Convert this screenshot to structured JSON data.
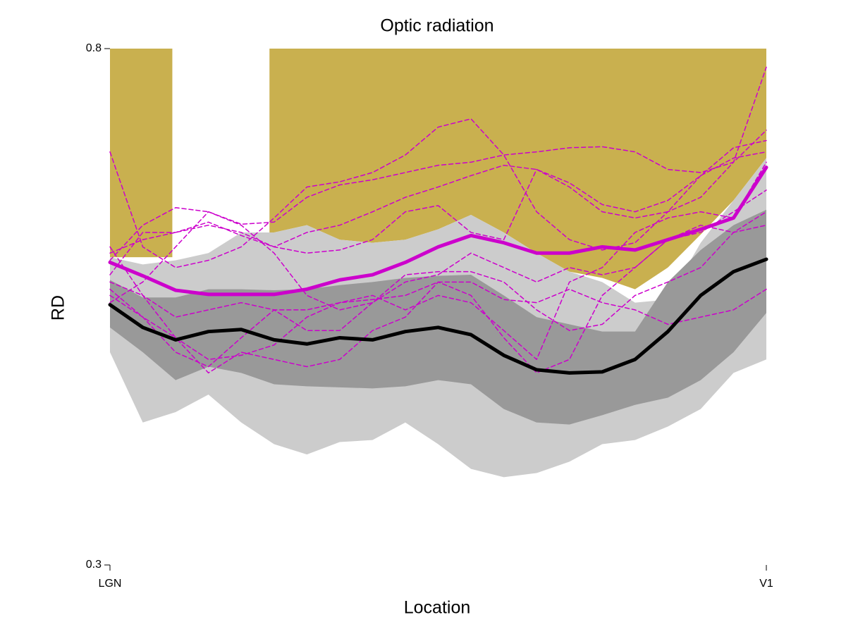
{
  "chart_data": {
    "type": "line",
    "title": "Optic radiation",
    "xlabel": "Location",
    "ylabel": "RD",
    "xlim": [
      0,
      100
    ],
    "ylim": [
      0.3,
      0.8
    ],
    "xticks": [
      {
        "value": 0,
        "label": "LGN"
      },
      {
        "value": 100,
        "label": "V1"
      }
    ],
    "yticks": [
      0.3,
      0.8
    ],
    "grid": false,
    "x": [
      0,
      5,
      10,
      15,
      20,
      25,
      30,
      35,
      40,
      45,
      50,
      55,
      60,
      65,
      70,
      75,
      80,
      85,
      90,
      95,
      100
    ],
    "shades": [
      {
        "color": "#c9b04f",
        "x": [
          0,
          9.5
        ],
        "lower": [
          0.598,
          0.598
        ]
      },
      {
        "color": "#c9b04f",
        "x": [
          24.3,
          25,
          30,
          35,
          40,
          45,
          50,
          55,
          60,
          65,
          70,
          75,
          80,
          85,
          90,
          95,
          100
        ],
        "lower": [
          0.622,
          0.622,
          0.629,
          0.615,
          0.612,
          0.615,
          0.625,
          0.639,
          0.622,
          0.602,
          0.584,
          0.578,
          0.567,
          0.588,
          0.62,
          0.653,
          0.694
        ]
      }
    ],
    "bands": [
      {
        "color": "#cccccc",
        "upper": [
          0.598,
          0.591,
          0.595,
          0.602,
          0.622,
          0.622,
          0.629,
          0.615,
          0.612,
          0.615,
          0.625,
          0.639,
          0.622,
          0.602,
          0.584,
          0.574,
          0.554,
          0.557,
          0.612,
          0.653,
          0.694
        ],
        "lower": [
          0.506,
          0.438,
          0.448,
          0.465,
          0.438,
          0.417,
          0.407,
          0.419,
          0.421,
          0.438,
          0.417,
          0.393,
          0.385,
          0.389,
          0.4,
          0.417,
          0.421,
          0.434,
          0.451,
          0.486,
          0.499
        ]
      },
      {
        "color": "#999999",
        "upper": [
          0.576,
          0.559,
          0.559,
          0.567,
          0.567,
          0.566,
          0.567,
          0.571,
          0.574,
          0.578,
          0.58,
          0.581,
          0.561,
          0.54,
          0.533,
          0.526,
          0.526,
          0.574,
          0.605,
          0.629,
          0.644
        ],
        "lower": [
          0.53,
          0.506,
          0.479,
          0.492,
          0.486,
          0.475,
          0.473,
          0.472,
          0.471,
          0.473,
          0.479,
          0.475,
          0.451,
          0.438,
          0.436,
          0.445,
          0.455,
          0.462,
          0.479,
          0.506,
          0.544
        ]
      }
    ],
    "series": [
      {
        "color": "#cc00cc",
        "dash": true,
        "width": 1.5,
        "values": [
          0.7,
          0.608,
          0.588,
          0.595,
          0.608,
          0.636,
          0.666,
          0.671,
          0.68,
          0.697,
          0.724,
          0.732,
          0.697,
          0.642,
          0.615,
          0.605,
          0.612,
          0.642,
          0.656,
          0.69,
          0.782
        ]
      },
      {
        "color": "#cc00cc",
        "dash": true,
        "width": 1.5,
        "values": [
          0.595,
          0.629,
          0.646,
          0.642,
          0.63,
          0.632,
          0.656,
          0.668,
          0.673,
          0.68,
          0.687,
          0.69,
          0.697,
          0.7,
          0.704,
          0.705,
          0.7,
          0.683,
          0.68,
          0.69,
          0.721
        ]
      },
      {
        "color": "#cc00cc",
        "dash": true,
        "width": 1.5,
        "values": [
          0.602,
          0.615,
          0.622,
          0.629,
          0.622,
          0.608,
          0.622,
          0.629,
          0.642,
          0.656,
          0.666,
          0.677,
          0.687,
          0.683,
          0.67,
          0.649,
          0.642,
          0.653,
          0.677,
          0.694,
          0.7
        ]
      },
      {
        "color": "#cc00cc",
        "dash": true,
        "width": 1.5,
        "values": [
          0.581,
          0.622,
          0.622,
          0.632,
          0.619,
          0.608,
          0.602,
          0.605,
          0.615,
          0.642,
          0.648,
          0.622,
          0.615,
          0.683,
          0.666,
          0.642,
          0.636,
          0.642,
          0.677,
          0.704,
          0.711
        ]
      },
      {
        "color": "#cc00cc",
        "dash": true,
        "width": 1.5,
        "values": [
          0.554,
          0.574,
          0.608,
          0.642,
          0.629,
          0.602,
          0.561,
          0.547,
          0.554,
          0.574,
          0.581,
          0.602,
          0.588,
          0.574,
          0.588,
          0.581,
          0.588,
          0.615,
          0.622,
          0.642,
          0.663
        ]
      },
      {
        "color": "#cc00cc",
        "dash": true,
        "width": 1.5,
        "values": [
          0.561,
          0.54,
          0.52,
          0.499,
          0.503,
          0.513,
          0.54,
          0.554,
          0.561,
          0.547,
          0.561,
          0.554,
          0.527,
          0.499,
          0.574,
          0.588,
          0.622,
          0.636,
          0.642,
          0.636,
          0.69
        ]
      },
      {
        "color": "#cc00cc",
        "dash": true,
        "width": 1.5,
        "values": [
          0.567,
          0.54,
          0.506,
          0.492,
          0.52,
          0.547,
          0.527,
          0.527,
          0.554,
          0.581,
          0.584,
          0.584,
          0.574,
          0.547,
          0.527,
          0.533,
          0.561,
          0.574,
          0.588,
          0.622,
          0.642
        ]
      },
      {
        "color": "#cc00cc",
        "dash": true,
        "width": 1.5,
        "values": [
          0.574,
          0.561,
          0.52,
          0.486,
          0.506,
          0.499,
          0.492,
          0.499,
          0.527,
          0.54,
          0.574,
          0.561,
          0.52,
          0.486,
          0.499,
          0.561,
          0.588,
          0.615,
          0.629,
          0.622,
          0.629
        ]
      },
      {
        "color": "#cc00cc",
        "dash": true,
        "width": 1.5,
        "values": [
          0.608,
          0.561,
          0.54,
          0.547,
          0.554,
          0.547,
          0.547,
          0.554,
          0.557,
          0.561,
          0.574,
          0.574,
          0.557,
          0.554,
          0.567,
          0.554,
          0.547,
          0.533,
          0.54,
          0.547,
          0.567
        ]
      },
      {
        "color": "#000000",
        "dash": false,
        "width": 5,
        "values": [
          0.552,
          0.53,
          0.518,
          0.526,
          0.528,
          0.518,
          0.514,
          0.52,
          0.518,
          0.526,
          0.53,
          0.523,
          0.503,
          0.489,
          0.486,
          0.487,
          0.499,
          0.526,
          0.561,
          0.584,
          0.596
        ]
      },
      {
        "color": "#cc00cc",
        "dash": false,
        "width": 5,
        "values": [
          0.593,
          0.58,
          0.566,
          0.562,
          0.562,
          0.562,
          0.567,
          0.576,
          0.581,
          0.593,
          0.608,
          0.619,
          0.612,
          0.602,
          0.602,
          0.608,
          0.605,
          0.615,
          0.625,
          0.636,
          0.685
        ]
      }
    ]
  }
}
